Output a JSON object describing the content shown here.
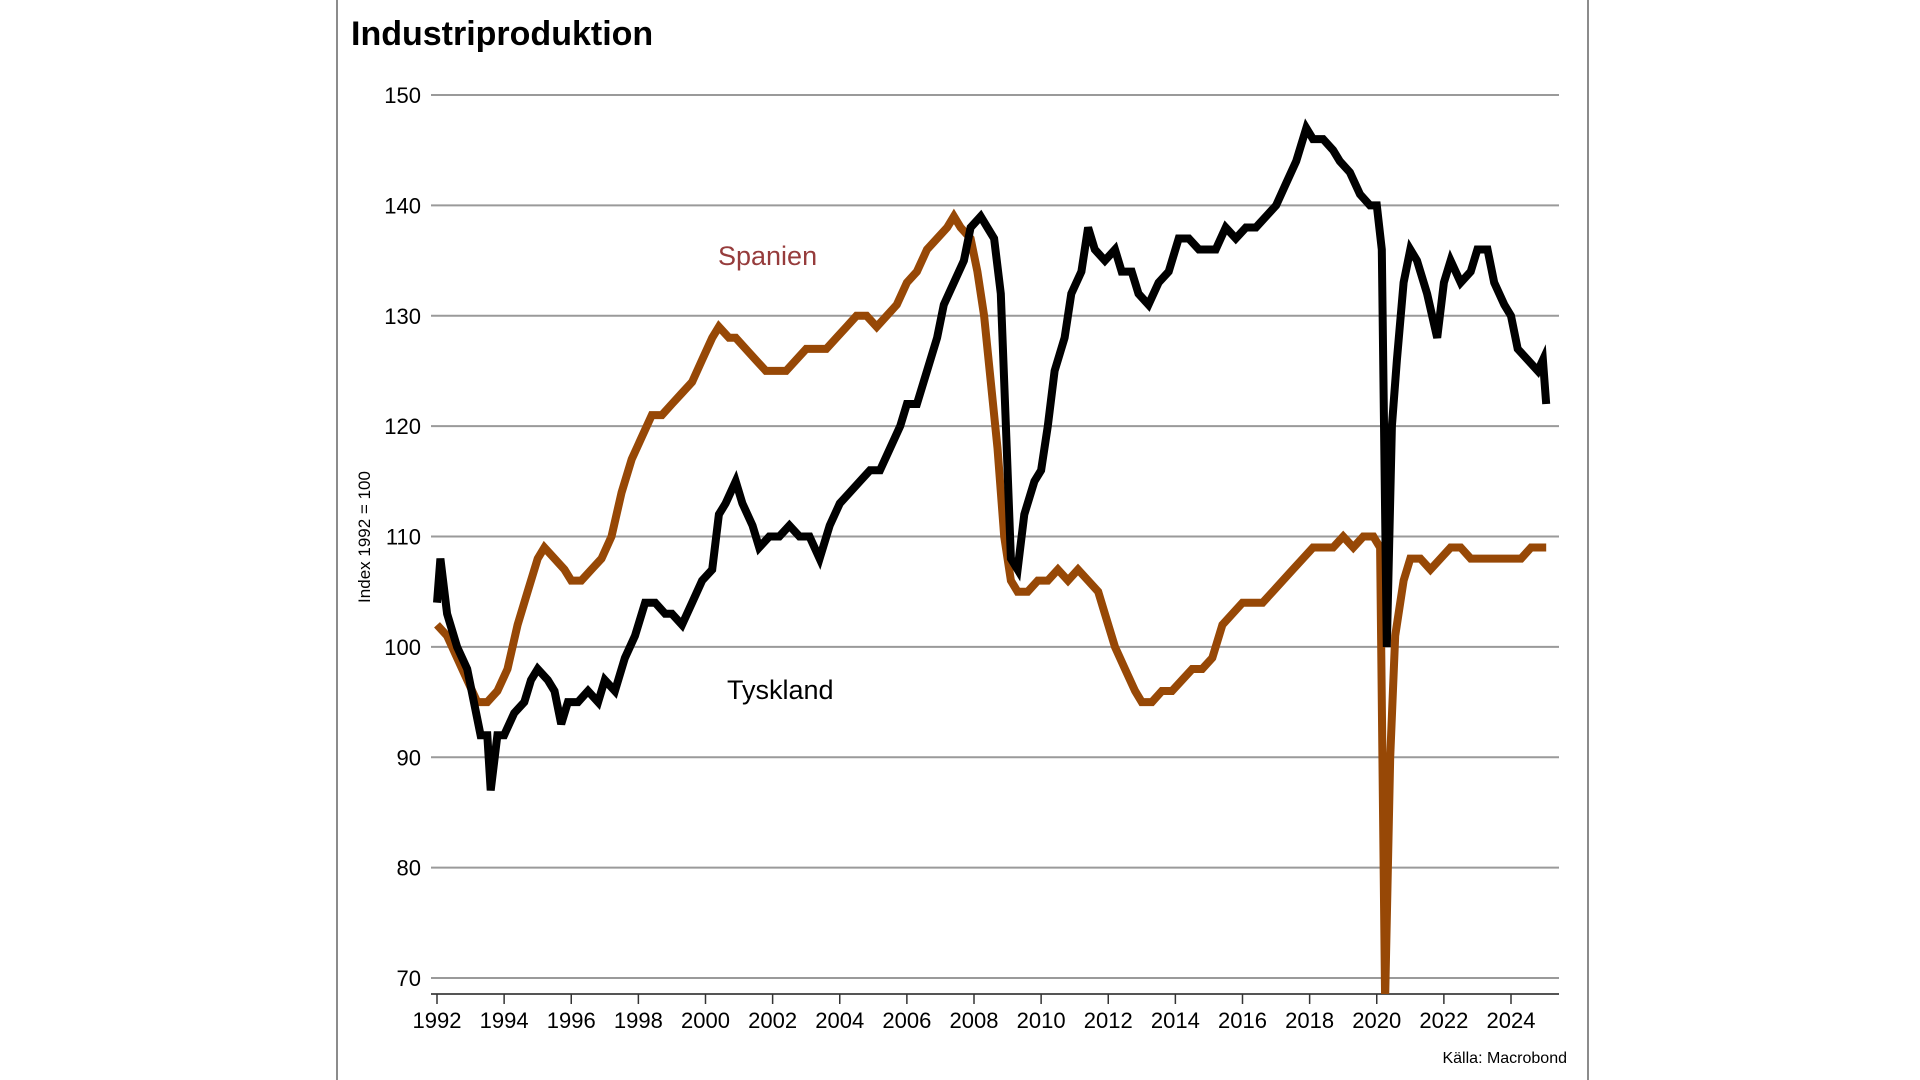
{
  "chart_data": {
    "type": "line",
    "title": "Industriproduktion",
    "ylabel": "Index 1992 = 100",
    "xlabel": "",
    "source": "Källa: Macrobond",
    "ylim": [
      68.6,
      151.4
    ],
    "xlim": [
      1991.85,
      2025.2
    ],
    "yticks": [
      70,
      80,
      90,
      100,
      110,
      120,
      130,
      140,
      150
    ],
    "xticks": [
      1992,
      1994,
      1996,
      1998,
      2000,
      2002,
      2004,
      2006,
      2008,
      2010,
      2012,
      2014,
      2016,
      2018,
      2020,
      2022,
      2024
    ],
    "grid": "horizontal",
    "series": [
      {
        "name": "Spanien",
        "color": "#974806",
        "label_color": "#963c3c",
        "x": [
          1992.0,
          1992.3,
          1992.6,
          1992.9,
          1993.2,
          1993.5,
          1993.8,
          1994.1,
          1994.4,
          1994.7,
          1995.0,
          1995.2,
          1995.5,
          1995.8,
          1996.0,
          1996.3,
          1996.6,
          1996.9,
          1997.2,
          1997.5,
          1997.8,
          1998.1,
          1998.4,
          1998.7,
          1999.0,
          1999.3,
          1999.6,
          1999.9,
          2000.2,
          2000.4,
          2000.7,
          2000.9,
          2001.2,
          2001.5,
          2001.8,
          2002.1,
          2002.4,
          2002.7,
          2003.0,
          2003.3,
          2003.6,
          2003.9,
          2004.2,
          2004.5,
          2004.8,
          2005.1,
          2005.4,
          2005.7,
          2006.0,
          2006.3,
          2006.6,
          2006.9,
          2007.2,
          2007.4,
          2007.6,
          2007.9,
          2008.1,
          2008.3,
          2008.5,
          2008.7,
          2008.9,
          2009.1,
          2009.3,
          2009.6,
          2009.9,
          2010.2,
          2010.5,
          2010.8,
          2011.1,
          2011.4,
          2011.7,
          2011.9,
          2012.2,
          2012.5,
          2012.8,
          2013.0,
          2013.3,
          2013.6,
          2013.9,
          2014.2,
          2014.5,
          2014.8,
          2015.1,
          2015.4,
          2015.7,
          2016.0,
          2016.3,
          2016.6,
          2016.9,
          2017.2,
          2017.5,
          2017.8,
          2018.1,
          2018.4,
          2018.7,
          2019.0,
          2019.3,
          2019.6,
          2019.9,
          2020.1,
          2020.25,
          2020.4,
          2020.55,
          2020.8,
          2021.0,
          2021.3,
          2021.6,
          2021.9,
          2022.2,
          2022.5,
          2022.8,
          2023.1,
          2023.4,
          2023.7,
          2024.0,
          2024.3,
          2024.6,
          2024.9,
          2025.05
        ],
        "y": [
          102,
          101,
          99,
          97,
          95,
          95,
          96,
          98,
          102,
          105,
          108,
          109,
          108,
          107,
          106,
          106,
          107,
          108,
          110,
          114,
          117,
          119,
          121,
          121,
          122,
          123,
          124,
          126,
          128,
          129,
          128,
          128,
          127,
          126,
          125,
          125,
          125,
          126,
          127,
          127,
          127,
          128,
          129,
          130,
          130,
          129,
          130,
          131,
          133,
          134,
          136,
          137,
          138,
          139,
          138,
          137,
          134,
          130,
          124,
          118,
          110,
          106,
          105,
          105,
          106,
          106,
          107,
          106,
          107,
          106,
          105,
          103,
          100,
          98,
          96,
          95,
          95,
          96,
          96,
          97,
          98,
          98,
          99,
          102,
          103,
          104,
          104,
          104,
          105,
          106,
          107,
          108,
          109,
          109,
          109,
          110,
          109,
          110,
          110,
          109,
          68,
          90,
          101,
          106,
          108,
          108,
          107,
          108,
          109,
          109,
          108,
          108,
          108,
          108,
          108,
          108,
          109,
          109,
          109
        ]
      },
      {
        "name": "Tyskland",
        "color": "#000000",
        "label_color": "#000000",
        "x": [
          1992.0,
          1992.1,
          1992.3,
          1992.6,
          1992.9,
          1993.1,
          1993.3,
          1993.5,
          1993.6,
          1993.8,
          1994.0,
          1994.3,
          1994.6,
          1994.8,
          1995.0,
          1995.3,
          1995.5,
          1995.7,
          1995.9,
          1996.2,
          1996.5,
          1996.8,
          1997.0,
          1997.3,
          1997.6,
          1997.9,
          1998.2,
          1998.5,
          1998.8,
          1999.0,
          1999.3,
          1999.6,
          1999.9,
          2000.2,
          2000.4,
          2000.6,
          2000.9,
          2001.1,
          2001.4,
          2001.6,
          2001.9,
          2002.2,
          2002.5,
          2002.8,
          2003.1,
          2003.4,
          2003.7,
          2004.0,
          2004.3,
          2004.6,
          2004.9,
          2005.2,
          2005.5,
          2005.8,
          2006.0,
          2006.3,
          2006.6,
          2006.9,
          2007.1,
          2007.4,
          2007.7,
          2007.9,
          2008.2,
          2008.4,
          2008.6,
          2008.8,
          2008.95,
          2009.1,
          2009.3,
          2009.5,
          2009.8,
          2010.0,
          2010.2,
          2010.4,
          2010.7,
          2010.9,
          2011.2,
          2011.4,
          2011.6,
          2011.9,
          2012.2,
          2012.4,
          2012.7,
          2012.9,
          2013.2,
          2013.5,
          2013.8,
          2014.1,
          2014.4,
          2014.7,
          2014.9,
          2015.2,
          2015.5,
          2015.8,
          2016.1,
          2016.4,
          2016.7,
          2017.0,
          2017.3,
          2017.6,
          2017.9,
          2018.1,
          2018.4,
          2018.7,
          2018.9,
          2019.2,
          2019.5,
          2019.8,
          2020.0,
          2020.15,
          2020.3,
          2020.45,
          2020.6,
          2020.8,
          2021.0,
          2021.2,
          2021.5,
          2021.8,
          2022.0,
          2022.2,
          2022.5,
          2022.8,
          2023.0,
          2023.3,
          2023.5,
          2023.8,
          2024.0,
          2024.2,
          2024.5,
          2024.8,
          2024.95,
          2025.05
        ],
        "y": [
          104,
          108,
          103,
          100,
          98,
          95,
          92,
          92,
          87,
          92,
          92,
          94,
          95,
          97,
          98,
          97,
          96,
          93,
          95,
          95,
          96,
          95,
          97,
          96,
          99,
          101,
          104,
          104,
          103,
          103,
          102,
          104,
          106,
          107,
          112,
          113,
          115,
          113,
          111,
          109,
          110,
          110,
          111,
          110,
          110,
          108,
          111,
          113,
          114,
          115,
          116,
          116,
          118,
          120,
          122,
          122,
          125,
          128,
          131,
          133,
          135,
          138,
          139,
          138,
          137,
          132,
          120,
          108,
          107,
          112,
          115,
          116,
          120,
          125,
          128,
          132,
          134,
          138,
          136,
          135,
          136,
          134,
          134,
          132,
          131,
          133,
          134,
          137,
          137,
          136,
          136,
          136,
          138,
          137,
          138,
          138,
          139,
          140,
          142,
          144,
          147,
          146,
          146,
          145,
          144,
          143,
          141,
          140,
          140,
          136,
          100,
          120,
          126,
          133,
          136,
          135,
          132,
          128,
          133,
          135,
          133,
          134,
          136,
          136,
          133,
          131,
          130,
          127,
          126,
          125,
          126,
          122
        ]
      }
    ]
  }
}
